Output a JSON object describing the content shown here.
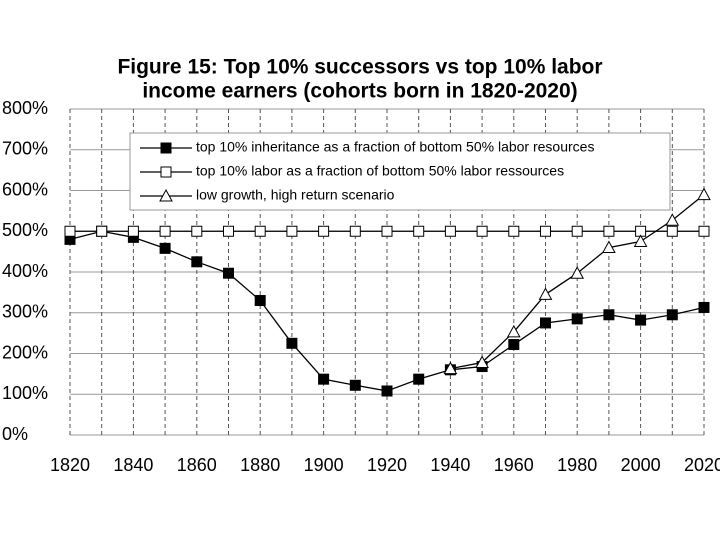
{
  "chart_data": {
    "type": "line",
    "title": [
      "Figure 15: Top 10% successors vs top 10% labor",
      "income earners (cohorts born in 1820-2020)"
    ],
    "x": [
      1820,
      1830,
      1840,
      1850,
      1860,
      1870,
      1880,
      1890,
      1900,
      1910,
      1920,
      1930,
      1940,
      1950,
      1960,
      1970,
      1980,
      1990,
      2000,
      2010,
      2020
    ],
    "series": [
      {
        "name": "top 10% inheritance as a fraction of bottom 50% labor resources",
        "color": "#000000",
        "marker": "filled-square",
        "values": [
          480,
          500,
          485,
          458,
          425,
          397,
          330,
          225,
          137,
          122,
          108,
          137,
          160,
          168,
          222,
          275,
          285,
          295,
          282,
          295,
          313
        ]
      },
      {
        "name": "top 10% labor as a fraction of bottom 50% labor ressources",
        "color": "#000000",
        "marker": "open-square",
        "values": [
          500,
          500,
          500,
          500,
          500,
          500,
          500,
          500,
          500,
          500,
          500,
          500,
          500,
          500,
          500,
          500,
          500,
          500,
          500,
          500,
          500
        ]
      },
      {
        "name": "low growth, high return scenario",
        "color": "#000000",
        "marker": "open-triangle",
        "values": [
          null,
          null,
          null,
          null,
          null,
          null,
          null,
          null,
          null,
          null,
          null,
          null,
          163,
          178,
          253,
          345,
          397,
          460,
          475,
          527,
          590
        ]
      }
    ],
    "xlim": [
      1820,
      2020
    ],
    "xticks": [
      1820,
      1840,
      1860,
      1880,
      1900,
      1920,
      1940,
      1960,
      1980,
      2000,
      2020
    ],
    "ylim": [
      0,
      800
    ],
    "yticks": [
      {
        "value": 0,
        "label": "0%"
      },
      {
        "value": 100,
        "label": "100%"
      },
      {
        "value": 200,
        "label": "200%"
      },
      {
        "value": 300,
        "label": "300%"
      },
      {
        "value": 400,
        "label": "400%"
      },
      {
        "value": 500,
        "label": "500%"
      },
      {
        "value": 600,
        "label": "600%"
      },
      {
        "value": 700,
        "label": "700%"
      },
      {
        "value": 800,
        "label": "800%"
      }
    ],
    "grid": true,
    "legend": "top"
  }
}
